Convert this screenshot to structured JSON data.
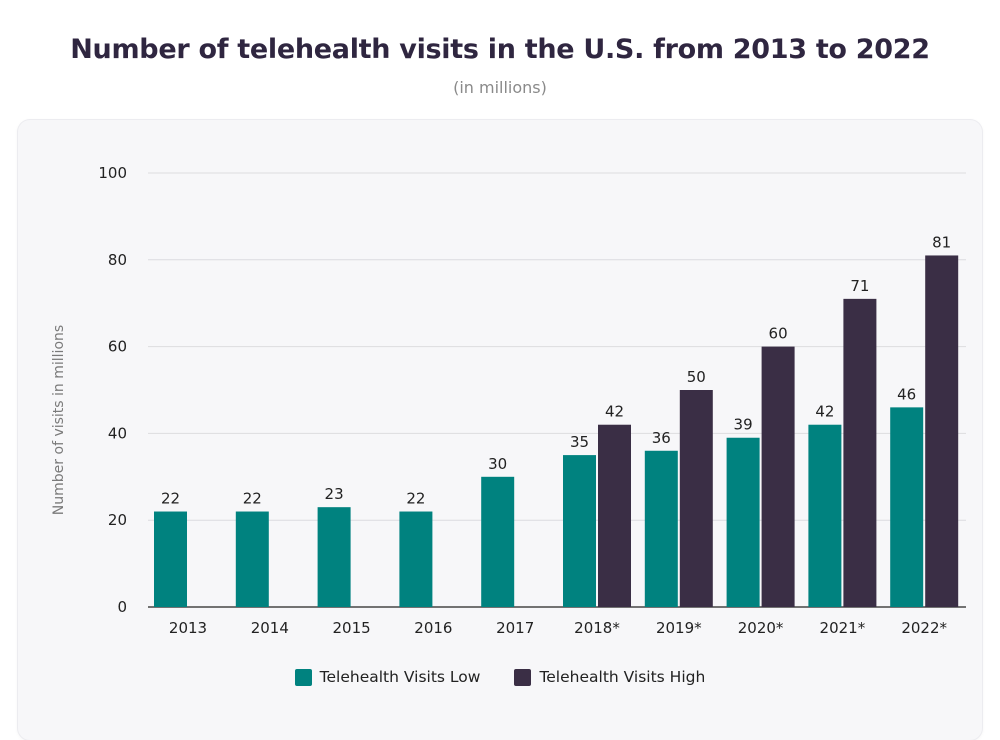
{
  "chart_data": {
    "type": "bar",
    "title": "Number of telehealth visits in the U.S. from 2013 to 2022",
    "subtitle": "(in millions)",
    "xlabel": "",
    "ylabel": "Number of visits in millions",
    "ylim": [
      0,
      100
    ],
    "yticks": [
      0,
      20,
      40,
      60,
      80,
      100
    ],
    "grid": true,
    "categories": [
      "2013",
      "2014",
      "2015",
      "2016",
      "2017",
      "2018*",
      "2019*",
      "2020*",
      "2021*",
      "2022*"
    ],
    "series": [
      {
        "name": "Telehealth Visits Low",
        "color": "#00827f",
        "values": [
          22,
          22,
          23,
          22,
          30,
          35,
          36,
          39,
          42,
          46
        ]
      },
      {
        "name": "Telehealth Visits High",
        "color": "#3a2e45",
        "values": [
          null,
          null,
          null,
          null,
          null,
          42,
          50,
          60,
          71,
          81
        ]
      }
    ],
    "legend_position": "bottom"
  }
}
